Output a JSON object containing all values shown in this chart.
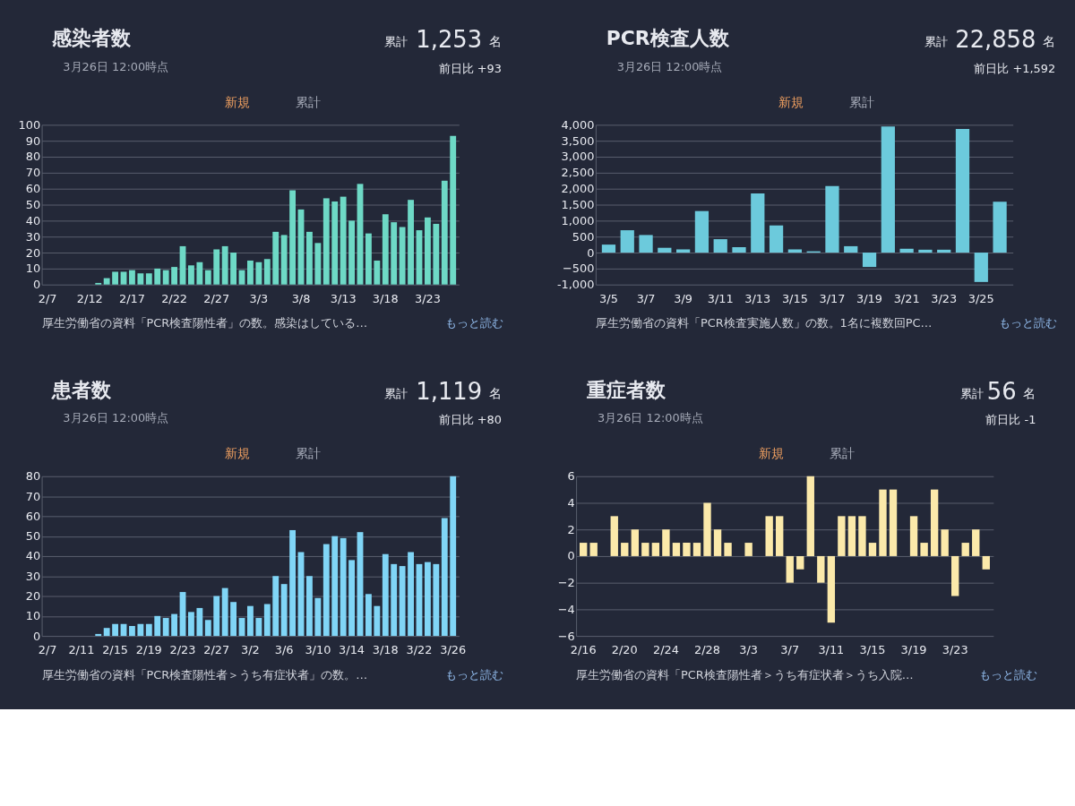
{
  "chart_data": [
    {
      "type": "bar",
      "title": "感染者数",
      "subtitle": "3月26日 12:00時点",
      "annotations": [
        "累計",
        "1,253",
        "名",
        "前日比 +93",
        "新規",
        "累計",
        "厚生労働省の資料「PCR検査陽性者」の数。感染はしている…",
        "もっと読む"
      ],
      "categories": [
        "2/7",
        null,
        null,
        null,
        null,
        "2/12",
        null,
        null,
        null,
        null,
        "2/17",
        null,
        null,
        null,
        null,
        "2/22",
        null,
        null,
        null,
        null,
        "2/27",
        null,
        null,
        null,
        null,
        "3/3",
        null,
        null,
        null,
        null,
        "3/8",
        null,
        null,
        null,
        null,
        "3/13",
        null,
        null,
        null,
        null,
        "3/18",
        null,
        null,
        null,
        null,
        "3/23",
        null,
        null,
        null
      ],
      "series": [
        {
          "color": "#6ed9c6",
          "values": [
            0,
            0,
            0,
            0,
            0,
            0,
            1,
            4,
            8,
            8,
            9,
            7,
            7,
            10,
            9,
            11,
            24,
            12,
            14,
            9,
            22,
            24,
            20,
            9,
            15,
            14,
            16,
            33,
            31,
            59,
            47,
            33,
            26,
            54,
            52,
            55,
            40,
            63,
            32,
            15,
            44,
            39,
            36,
            53,
            34,
            42,
            38,
            65,
            93
          ]
        }
      ],
      "ylim": [
        0,
        100
      ],
      "yticks": [
        0,
        10,
        20,
        30,
        40,
        50,
        60,
        70,
        80,
        90,
        100
      ],
      "grid": "y"
    },
    {
      "type": "bar",
      "title": "PCR検査人数",
      "subtitle": "3月26日 12:00時点",
      "annotations": [
        "累計",
        "22,858",
        "名",
        "前日比 +1,592",
        "新規",
        "累計",
        "厚生労働省の資料「PCR検査実施人数」の数。1名に複数回PC…",
        "もっと読む"
      ],
      "categories": [
        "3/5",
        null,
        "3/7",
        null,
        "3/9",
        null,
        "3/11",
        null,
        "3/13",
        null,
        "3/15",
        null,
        "3/17",
        null,
        "3/19",
        null,
        "3/21",
        null,
        "3/23",
        null,
        "3/25",
        null
      ],
      "series": [
        {
          "color": "#6ccadc",
          "values": [
            250,
            700,
            550,
            150,
            100,
            1300,
            420,
            170,
            1850,
            850,
            100,
            40,
            2080,
            200,
            -450,
            3950,
            120,
            90,
            90,
            3870,
            -920,
            1592
          ]
        }
      ],
      "ylim": [
        -1000,
        4000
      ],
      "yticks": [
        {
          "value": -1000,
          "label": "-1,000"
        },
        -500,
        0,
        500,
        {
          "value": 1000,
          "label": "1,000"
        },
        {
          "value": 1500,
          "label": "1,500"
        },
        {
          "value": 2000,
          "label": "2,000"
        },
        {
          "value": 2500,
          "label": "2,500"
        },
        {
          "value": 3000,
          "label": "3,000"
        },
        {
          "value": 3500,
          "label": "3,500"
        },
        {
          "value": 4000,
          "label": "4,000"
        }
      ],
      "grid": "y"
    },
    {
      "type": "bar",
      "title": "患者数",
      "subtitle": "3月26日 12:00時点",
      "annotations": [
        "累計",
        "1,119",
        "名",
        "前日比 +80",
        "新規",
        "累計",
        "厚生労働省の資料「PCR検査陽性者＞うち有症状者」の数。…",
        "もっと読む"
      ],
      "categories": [
        "2/7",
        null,
        null,
        null,
        "2/11",
        null,
        null,
        null,
        "2/15",
        null,
        null,
        null,
        "2/19",
        null,
        null,
        null,
        "2/23",
        null,
        null,
        null,
        "2/27",
        null,
        null,
        null,
        "3/2",
        null,
        null,
        null,
        "3/6",
        null,
        null,
        null,
        "3/10",
        null,
        null,
        null,
        "3/14",
        null,
        null,
        null,
        "3/18",
        null,
        null,
        null,
        "3/22",
        null,
        null,
        null,
        "3/26"
      ],
      "series": [
        {
          "color": "#80d5f6",
          "values": [
            0,
            0,
            0,
            0,
            0,
            0,
            1,
            4,
            6,
            6,
            5,
            6,
            6,
            10,
            9,
            11,
            22,
            12,
            14,
            8,
            20,
            24,
            17,
            9,
            15,
            9,
            16,
            30,
            26,
            53,
            42,
            30,
            19,
            46,
            50,
            49,
            38,
            52,
            21,
            15,
            41,
            36,
            35,
            42,
            36,
            37,
            36,
            59,
            80
          ]
        }
      ],
      "ylim": [
        0,
        80
      ],
      "yticks": [
        0,
        10,
        20,
        30,
        40,
        50,
        60,
        70,
        80
      ],
      "grid": "y"
    },
    {
      "type": "bar",
      "title": "重症者数",
      "subtitle": "3月26日 12:00時点",
      "annotations": [
        "累計",
        "56",
        "名",
        "前日比 -1",
        "新規",
        "累計",
        "厚生労働省の資料「PCR検査陽性者＞うち有症状者＞うち入院…",
        "もっと読む"
      ],
      "categories": [
        "2/16",
        null,
        null,
        null,
        "2/20",
        null,
        null,
        null,
        "2/24",
        null,
        null,
        null,
        "2/28",
        null,
        null,
        null,
        "3/3",
        null,
        null,
        null,
        "3/7",
        null,
        null,
        null,
        "3/11",
        null,
        null,
        null,
        "3/15",
        null,
        null,
        null,
        "3/19",
        null,
        null,
        null,
        "3/23",
        null,
        null,
        null
      ],
      "series": [
        {
          "color": "#fbe9aa",
          "values": [
            1,
            1,
            0,
            3,
            1,
            2,
            1,
            1,
            2,
            1,
            1,
            1,
            4,
            2,
            1,
            0,
            1,
            0,
            3,
            3,
            -2,
            -1,
            6,
            -2,
            -5,
            3,
            3,
            3,
            1,
            5,
            5,
            0,
            3,
            1,
            5,
            2,
            -3,
            1,
            2,
            -1
          ]
        }
      ],
      "ylim": [
        -6,
        6
      ],
      "yticks": [
        -6,
        -4,
        -2,
        0,
        2,
        4,
        6
      ],
      "grid": "y"
    }
  ]
}
